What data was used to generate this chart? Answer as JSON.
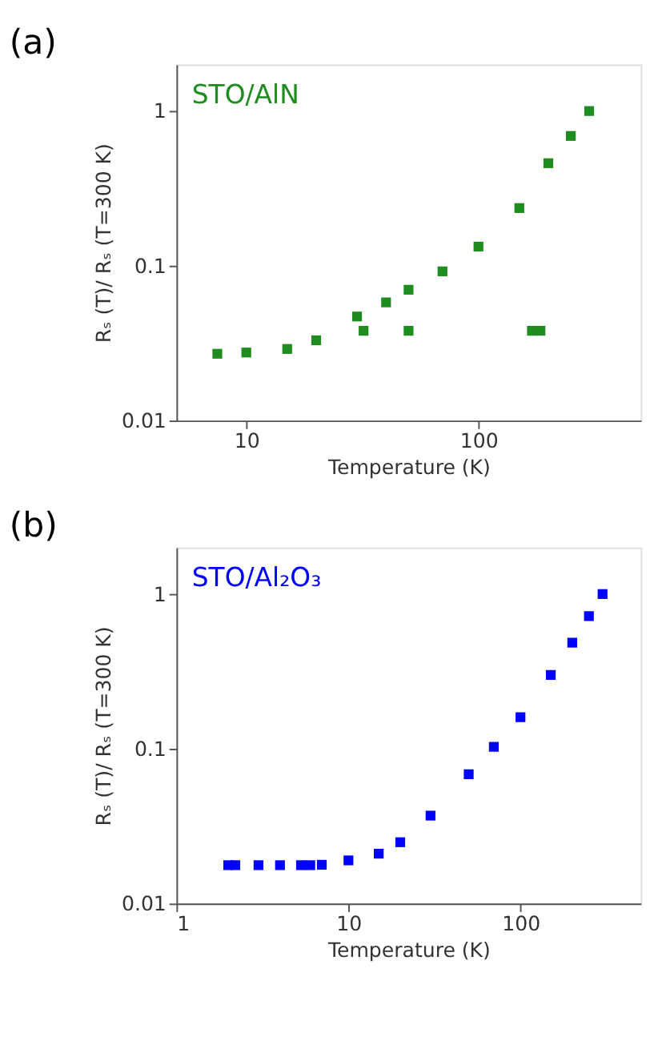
{
  "chart_data": [
    {
      "type": "scatter",
      "title": "(a)",
      "xlabel": "Temperature (K)",
      "ylabel": "Rₛ (T)/ Rₛ (T=300 K)",
      "annotations": [
        "STO/AlN"
      ],
      "log": "xy",
      "marker": "square",
      "grid": false,
      "xlim": [
        5,
        500
      ],
      "xticks": [
        10,
        100
      ],
      "ylim": [
        0.01,
        2
      ],
      "yticks": [
        0.01,
        0.1,
        1
      ],
      "series": [
        {
          "color": "#1e8c1e",
          "x": [
            7.5,
            10,
            15,
            20,
            30,
            40,
            50,
            70,
            100,
            150,
            200,
            250,
            300,
            32,
            50,
            170,
            185
          ],
          "values": [
            0.027,
            0.0275,
            0.029,
            0.033,
            0.047,
            0.058,
            0.07,
            0.092,
            0.133,
            0.236,
            0.46,
            0.69,
            1.0,
            0.038,
            0.038,
            0.038,
            0.038
          ]
        }
      ]
    },
    {
      "type": "scatter",
      "title": "(b)",
      "xlabel": "Temperature (K)",
      "ylabel": "Rₛ (T)/ Rₛ (T=300 K)",
      "annotations": [
        "STO/Al₂O₃"
      ],
      "log": "xy",
      "marker": "square",
      "grid": false,
      "xlim": [
        1,
        500
      ],
      "xticks": [
        1,
        10,
        100
      ],
      "ylim": [
        0.01,
        2
      ],
      "yticks": [
        0.01,
        0.1,
        1
      ],
      "series": [
        {
          "color": "#0000ff",
          "x": [
            2,
            2.2,
            3,
            4,
            5.3,
            6,
            7,
            10,
            15,
            20,
            30,
            50,
            70,
            100,
            150,
            200,
            250,
            300
          ],
          "values": [
            0.0177,
            0.0177,
            0.0177,
            0.0177,
            0.0177,
            0.0177,
            0.0178,
            0.019,
            0.021,
            0.0249,
            0.037,
            0.0685,
            0.103,
            0.16,
            0.3,
            0.485,
            0.72,
            1.0
          ]
        }
      ]
    }
  ]
}
